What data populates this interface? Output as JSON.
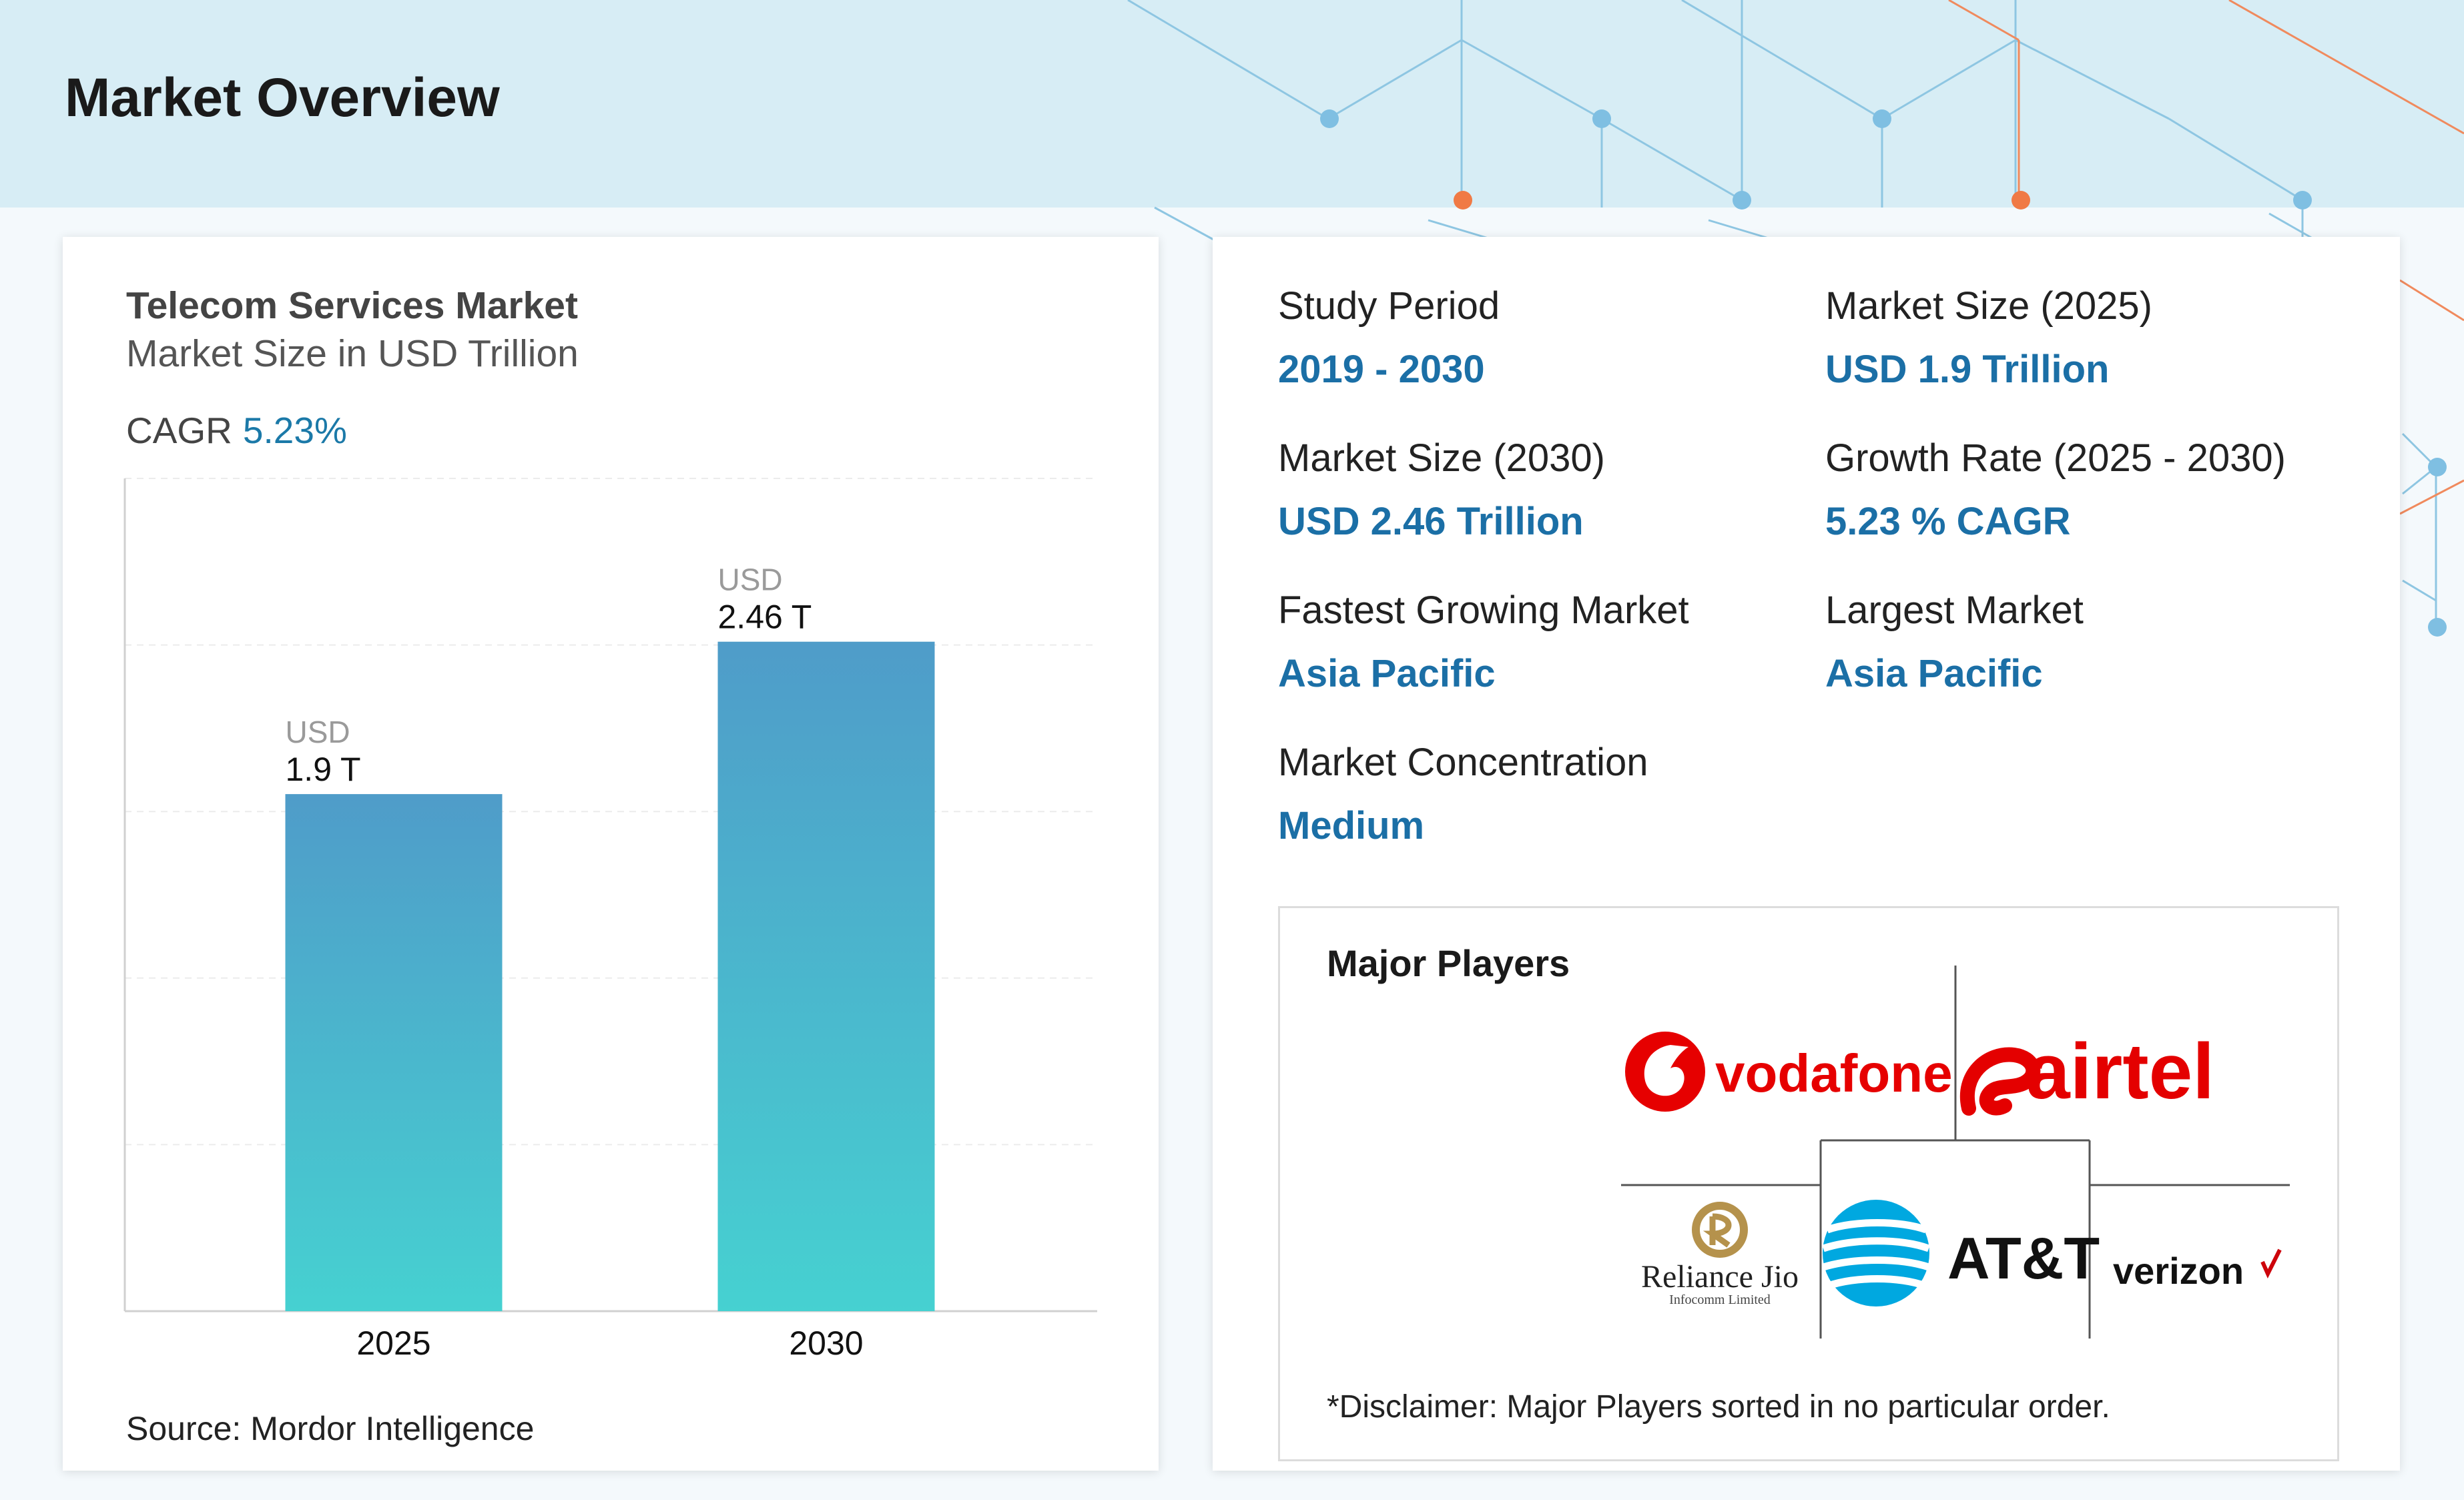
{
  "header": {
    "title": "Market Overview"
  },
  "chart_data": {
    "type": "bar",
    "title": "Telecom Services Market",
    "subtitle": "Market Size in USD Trillion",
    "categories": [
      "2025",
      "2030"
    ],
    "values": [
      1.9,
      2.46
    ],
    "value_prefix": "USD",
    "value_labels": [
      "1.9 T",
      "2.46 T"
    ],
    "ylim": [
      0,
      3.06
    ],
    "grid": true,
    "cagr_label": "CAGR",
    "cagr_value": "5.23%",
    "bar_color_top": "#4f9cc9",
    "bar_color_bottom": "#46d1d1"
  },
  "source": "Source: Mordor Intelligence",
  "stats": [
    {
      "label": "Study Period",
      "value": "2019 - 2030"
    },
    {
      "label": "Market Size (2025)",
      "value": "USD 1.9 Trillion"
    },
    {
      "label": "Market Size (2030)",
      "value": "USD 2.46 Trillion"
    },
    {
      "label": "Growth Rate (2025 - 2030)",
      "value": "5.23 % CAGR"
    },
    {
      "label": "Fastest Growing Market",
      "value": "Asia Pacific"
    },
    {
      "label": "Largest Market",
      "value": "Asia Pacific"
    },
    {
      "label": "Market Concentration",
      "value": "Medium"
    }
  ],
  "players": {
    "title": "Major Players",
    "logos": [
      {
        "name": "vodafone",
        "icon": "vodafone-logo",
        "color": "#e60000"
      },
      {
        "name": "airtel",
        "icon": "airtel-logo",
        "color": "#e40000"
      },
      {
        "name": "Reliance Jio",
        "sub": "Infocomm Limited",
        "icon": "reliance-jio-logo",
        "color": "#b5924c"
      },
      {
        "name": "AT&T",
        "icon": "att-logo",
        "color": "#00a8e0"
      },
      {
        "name": "verizon",
        "icon": "verizon-logo",
        "color": "#cd040b"
      }
    ],
    "disclaimer": "*Disclaimer: Major Players sorted in no particular order."
  },
  "colors": {
    "accent": "#1b6fa6",
    "header_bg": "#d7edf5"
  }
}
